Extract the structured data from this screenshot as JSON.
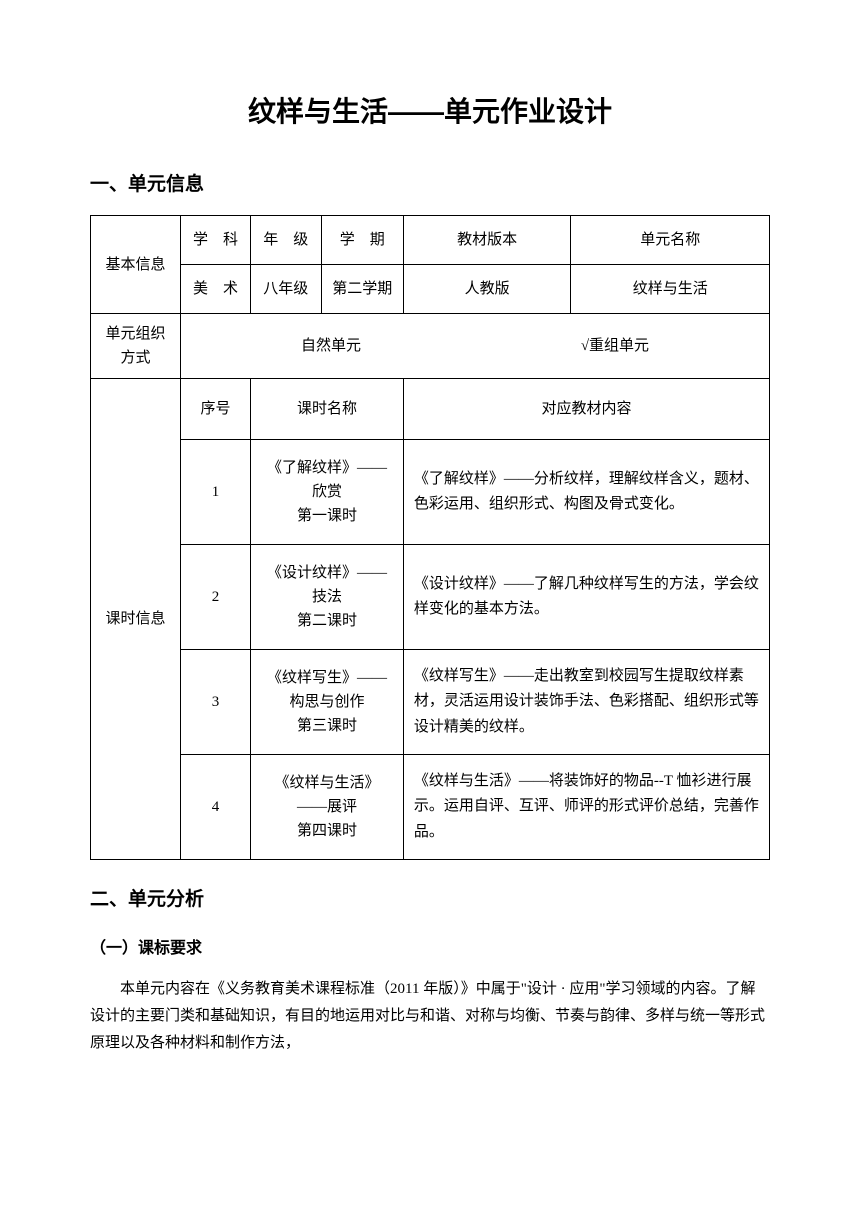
{
  "title": "纹样与生活——单元作业设计",
  "section1": {
    "heading": "一、单元信息",
    "basic_info_label": "基本信息",
    "headers": {
      "subject": "学　科",
      "grade": "年　级",
      "semester": "学　期",
      "textbook": "教材版本",
      "unit_name": "单元名称"
    },
    "values": {
      "subject": "美　术",
      "grade": "八年级",
      "semester": "第二学期",
      "textbook": "人教版",
      "unit_name": "纹样与生活"
    },
    "org_label": "单元组织\n方式",
    "org_option1": "自然单元",
    "org_option2": "√重组单元",
    "lesson_info_label": "课时信息",
    "lesson_headers": {
      "seq": "序号",
      "name": "课时名称",
      "content": "对应教材内容"
    },
    "lessons": [
      {
        "seq": "1",
        "name": "《了解纹样》——欣赏\n第一课时",
        "content": "《了解纹样》——分析纹样，理解纹样含义，题材、色彩运用、组织形式、构图及骨式变化。"
      },
      {
        "seq": "2",
        "name": "《设计纹样》——技法\n第二课时",
        "content": "《设计纹样》——了解几种纹样写生的方法，学会纹样变化的基本方法。"
      },
      {
        "seq": "3",
        "name": "《纹样写生》——构思与创作\n第三课时",
        "content": "《纹样写生》——走出教室到校园写生提取纹样素材，灵活运用设计装饰手法、色彩搭配、组织形式等设计精美的纹样。"
      },
      {
        "seq": "4",
        "name": "《纹样与生活》——展评\n第四课时",
        "content": "《纹样与生活》——将装饰好的物品--T 恤衫进行展示。运用自评、互评、师评的形式评价总结，完善作品。"
      }
    ]
  },
  "section2": {
    "heading": "二、单元分析",
    "sub1": "（一）课标要求",
    "para1": "本单元内容在《义务教育美术课程标准（2011 年版）》中属于\"设计 · 应用\"学习领域的内容。了解设计的主要门类和基础知识，有目的地运用对比与和谐、对称与均衡、节奏与韵律、多样与统一等形式原理以及各种材料和制作方法，"
  }
}
